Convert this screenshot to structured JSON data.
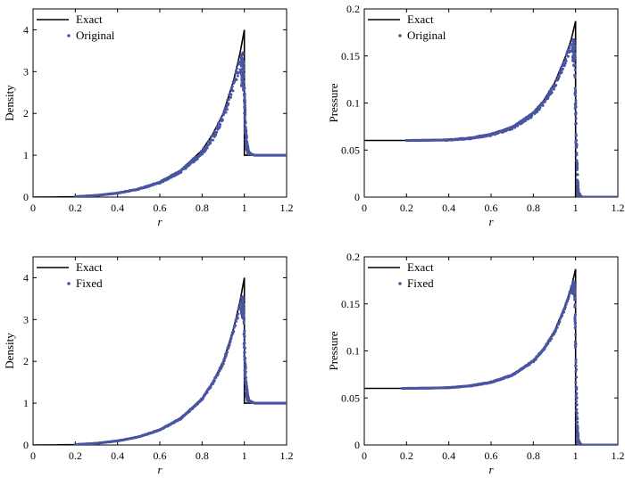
{
  "colors": {
    "exact": "#000000",
    "points": "#4a55a2"
  },
  "chart_data": [
    {
      "type": "line",
      "xlabel": "r",
      "ylabel": "Density",
      "xlim": [
        0,
        1.2
      ],
      "ylim": [
        0,
        4.5
      ],
      "xticks": [
        0,
        0.2,
        0.4,
        0.6,
        0.8,
        1,
        1.2
      ],
      "yticks": [
        0,
        1,
        2,
        3,
        4
      ],
      "xtick_labels": [
        "0",
        "0.2",
        "0.4",
        "0.6",
        "0.8",
        "1",
        "1.2"
      ],
      "ytick_labels": [
        "0",
        "1",
        "2",
        "3",
        "4"
      ],
      "legend": "top-left",
      "series": [
        {
          "name": "Exact",
          "style": "line",
          "x": [
            0,
            0.1,
            0.2,
            0.3,
            0.4,
            0.5,
            0.6,
            0.7,
            0.8,
            0.85,
            0.9,
            0.95,
            0.98,
            1.0,
            1.0,
            1.2
          ],
          "y": [
            0,
            0.002,
            0.01,
            0.04,
            0.1,
            0.2,
            0.37,
            0.65,
            1.12,
            1.5,
            2.0,
            2.8,
            3.45,
            4.0,
            1.0,
            1.0
          ]
        },
        {
          "name": "Original",
          "style": "points",
          "x": [
            0.2,
            0.3,
            0.4,
            0.5,
            0.6,
            0.7,
            0.8,
            0.85,
            0.9,
            0.95,
            0.97,
            0.985,
            0.995,
            1.0,
            1.005,
            1.01,
            1.015,
            1.02,
            1.03,
            1.05,
            1.1,
            1.15,
            1.2
          ],
          "y": [
            0.01,
            0.04,
            0.1,
            0.2,
            0.37,
            0.65,
            1.12,
            1.5,
            2.0,
            2.8,
            3.2,
            3.4,
            3.5,
            2.9,
            2.0,
            1.5,
            1.25,
            1.12,
            1.05,
            1.0,
            1.0,
            1.0,
            1.0
          ],
          "band": [
            0.0,
            0.0,
            0.01,
            0.02,
            0.04,
            0.07,
            0.12,
            0.15,
            0.2,
            0.25,
            0.3,
            0.4,
            0.5,
            0.5,
            0.3,
            0.2,
            0.1,
            0.05,
            0.03,
            0.0,
            0.0,
            0.0,
            0.0
          ]
        }
      ]
    },
    {
      "type": "line",
      "xlabel": "r",
      "ylabel": "Pressure",
      "xlim": [
        0,
        1.2
      ],
      "ylim": [
        0,
        0.2
      ],
      "xticks": [
        0,
        0.2,
        0.4,
        0.6,
        0.8,
        1,
        1.2
      ],
      "yticks": [
        0,
        0.05,
        0.1,
        0.15,
        0.2
      ],
      "xtick_labels": [
        "0",
        "0.2",
        "0.4",
        "0.6",
        "0.8",
        "1",
        "1.2"
      ],
      "ytick_labels": [
        "0",
        "0.05",
        "0.1",
        "0.15",
        "0.2"
      ],
      "legend": "top-left",
      "series": [
        {
          "name": "Exact",
          "style": "line",
          "x": [
            0,
            0.2,
            0.4,
            0.5,
            0.6,
            0.7,
            0.8,
            0.85,
            0.9,
            0.95,
            0.98,
            1.0,
            1.0,
            1.2
          ],
          "y": [
            0.0602,
            0.0602,
            0.0612,
            0.0632,
            0.0672,
            0.075,
            0.09,
            0.103,
            0.121,
            0.148,
            0.168,
            0.187,
            0,
            0
          ]
        },
        {
          "name": "Original",
          "style": "points",
          "x": [
            0.2,
            0.33,
            0.4,
            0.5,
            0.6,
            0.7,
            0.8,
            0.85,
            0.9,
            0.95,
            0.97,
            0.985,
            0.995,
            1.0,
            1.005,
            1.01,
            1.015,
            1.03,
            1.06,
            1.1,
            1.15,
            1.2
          ],
          "y": [
            0.0602,
            0.0605,
            0.0612,
            0.0632,
            0.0672,
            0.075,
            0.09,
            0.103,
            0.121,
            0.148,
            0.16,
            0.167,
            0.168,
            0.12,
            0.06,
            0.02,
            0.005,
            0.0,
            0.0,
            0.0,
            0.0,
            0.0
          ],
          "band": [
            0.0,
            0.0,
            0.001,
            0.0015,
            0.002,
            0.003,
            0.004,
            0.005,
            0.006,
            0.008,
            0.01,
            0.012,
            0.015,
            0.03,
            0.02,
            0.01,
            0.004,
            0.0,
            0.0,
            0.0,
            0.0,
            0.0
          ]
        }
      ]
    },
    {
      "type": "line",
      "xlabel": "r",
      "ylabel": "Density",
      "xlim": [
        0,
        1.2
      ],
      "ylim": [
        0,
        4.5
      ],
      "xticks": [
        0,
        0.2,
        0.4,
        0.6,
        0.8,
        1,
        1.2
      ],
      "yticks": [
        0,
        1,
        2,
        3,
        4
      ],
      "xtick_labels": [
        "0",
        "0.2",
        "0.4",
        "0.6",
        "0.8",
        "1",
        "1.2"
      ],
      "ytick_labels": [
        "0",
        "1",
        "2",
        "3",
        "4"
      ],
      "legend": "top-left",
      "series": [
        {
          "name": "Exact",
          "style": "line",
          "x": [
            0,
            0.1,
            0.2,
            0.3,
            0.4,
            0.5,
            0.6,
            0.7,
            0.8,
            0.85,
            0.9,
            0.95,
            0.98,
            1.0,
            1.0,
            1.2
          ],
          "y": [
            0,
            0.002,
            0.01,
            0.04,
            0.1,
            0.2,
            0.37,
            0.65,
            1.12,
            1.5,
            2.0,
            2.8,
            3.45,
            4.0,
            1.0,
            1.0
          ]
        },
        {
          "name": "Fixed",
          "style": "points",
          "x": [
            0.2,
            0.3,
            0.4,
            0.5,
            0.6,
            0.7,
            0.8,
            0.85,
            0.9,
            0.95,
            0.97,
            0.985,
            0.995,
            1.0,
            1.005,
            1.01,
            1.015,
            1.02,
            1.03,
            1.05,
            1.1,
            1.15,
            1.2
          ],
          "y": [
            0.01,
            0.04,
            0.1,
            0.2,
            0.37,
            0.65,
            1.12,
            1.5,
            2.0,
            2.8,
            3.2,
            3.5,
            3.6,
            3.0,
            2.0,
            1.5,
            1.25,
            1.12,
            1.05,
            1.0,
            1.0,
            1.0,
            1.0
          ],
          "band": [
            0.0,
            0.0,
            0.005,
            0.01,
            0.02,
            0.03,
            0.05,
            0.06,
            0.08,
            0.1,
            0.15,
            0.2,
            0.3,
            0.5,
            0.3,
            0.2,
            0.1,
            0.05,
            0.03,
            0.0,
            0.0,
            0.0,
            0.0
          ]
        }
      ]
    },
    {
      "type": "line",
      "xlabel": "r",
      "ylabel": "Pressure",
      "xlim": [
        0,
        1.2
      ],
      "ylim": [
        0,
        0.2
      ],
      "xticks": [
        0,
        0.2,
        0.4,
        0.6,
        0.8,
        1,
        1.2
      ],
      "yticks": [
        0,
        0.05,
        0.1,
        0.15,
        0.2
      ],
      "xtick_labels": [
        "0",
        "0.2",
        "0.4",
        "0.6",
        "0.8",
        "1",
        "1.2"
      ],
      "ytick_labels": [
        "0",
        "0.05",
        "0.1",
        "0.15",
        "0.2"
      ],
      "legend": "top-left",
      "series": [
        {
          "name": "Exact",
          "style": "line",
          "x": [
            0,
            0.2,
            0.4,
            0.5,
            0.6,
            0.7,
            0.8,
            0.85,
            0.9,
            0.95,
            0.98,
            1.0,
            1.0,
            1.2
          ],
          "y": [
            0.0602,
            0.0602,
            0.0612,
            0.0632,
            0.0672,
            0.075,
            0.09,
            0.103,
            0.121,
            0.148,
            0.168,
            0.187,
            0,
            0
          ]
        },
        {
          "name": "Fixed",
          "style": "points",
          "x": [
            0.18,
            0.32,
            0.4,
            0.5,
            0.6,
            0.7,
            0.8,
            0.85,
            0.9,
            0.95,
            0.97,
            0.985,
            0.995,
            1.0,
            1.005,
            1.01,
            1.015,
            1.03,
            1.06,
            1.1,
            1.15,
            1.2
          ],
          "y": [
            0.0602,
            0.0605,
            0.0612,
            0.0632,
            0.0672,
            0.075,
            0.09,
            0.103,
            0.121,
            0.148,
            0.162,
            0.172,
            0.176,
            0.13,
            0.06,
            0.02,
            0.005,
            0.0,
            0.0,
            0.0,
            0.0,
            0.0
          ],
          "band": [
            0.0,
            0.0,
            0.0005,
            0.0008,
            0.001,
            0.0015,
            0.002,
            0.0025,
            0.003,
            0.004,
            0.005,
            0.006,
            0.008,
            0.03,
            0.02,
            0.01,
            0.004,
            0.0,
            0.0,
            0.0,
            0.0,
            0.0
          ]
        }
      ]
    }
  ]
}
